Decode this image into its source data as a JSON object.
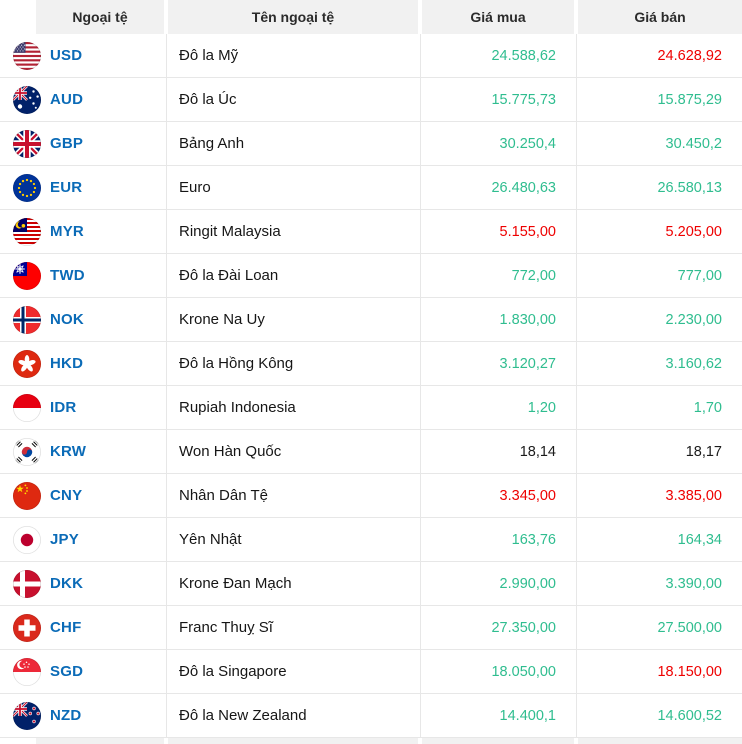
{
  "header": {
    "columns": [
      "Ngoại tệ",
      "Tên ngoại tệ",
      "Giá mua",
      "Giá bán"
    ]
  },
  "colors": {
    "up": "#2fbd8f",
    "down": "#ee0000",
    "neutral": "#1b1b1b",
    "code_blue": "#0b6bb7",
    "header_bg": "#f1f1f1"
  },
  "rows": [
    {
      "code": "USD",
      "flag_icon": "usd-flag-icon",
      "name": "Đô la Mỹ",
      "buy": "24.588,62",
      "buy_trend": "up",
      "sell": "24.628,92",
      "sell_trend": "down"
    },
    {
      "code": "AUD",
      "flag_icon": "aud-flag-icon",
      "name": "Đô la Úc",
      "buy": "15.775,73",
      "buy_trend": "up",
      "sell": "15.875,29",
      "sell_trend": "up"
    },
    {
      "code": "GBP",
      "flag_icon": "gbp-flag-icon",
      "name": "Bảng Anh",
      "buy": "30.250,4",
      "buy_trend": "up",
      "sell": "30.450,2",
      "sell_trend": "up"
    },
    {
      "code": "EUR",
      "flag_icon": "eur-flag-icon",
      "name": "Euro",
      "buy": "26.480,63",
      "buy_trend": "up",
      "sell": "26.580,13",
      "sell_trend": "up"
    },
    {
      "code": "MYR",
      "flag_icon": "myr-flag-icon",
      "name": "Ringit Malaysia",
      "buy": "5.155,00",
      "buy_trend": "down",
      "sell": "5.205,00",
      "sell_trend": "down"
    },
    {
      "code": "TWD",
      "flag_icon": "twd-flag-icon",
      "name": "Đô la Đài Loan",
      "buy": "772,00",
      "buy_trend": "up",
      "sell": "777,00",
      "sell_trend": "up"
    },
    {
      "code": "NOK",
      "flag_icon": "nok-flag-icon",
      "name": "Krone Na Uy",
      "buy": "1.830,00",
      "buy_trend": "up",
      "sell": "2.230,00",
      "sell_trend": "up"
    },
    {
      "code": "HKD",
      "flag_icon": "hkd-flag-icon",
      "name": "Đô la Hồng Kông",
      "buy": "3.120,27",
      "buy_trend": "up",
      "sell": "3.160,62",
      "sell_trend": "up"
    },
    {
      "code": "IDR",
      "flag_icon": "idr-flag-icon",
      "name": "Rupiah Indonesia",
      "buy": "1,20",
      "buy_trend": "up",
      "sell": "1,70",
      "sell_trend": "up"
    },
    {
      "code": "KRW",
      "flag_icon": "krw-flag-icon",
      "name": "Won Hàn Quốc",
      "buy": "18,14",
      "buy_trend": "neutral",
      "sell": "18,17",
      "sell_trend": "neutral"
    },
    {
      "code": "CNY",
      "flag_icon": "cny-flag-icon",
      "name": "Nhân Dân Tệ",
      "buy": "3.345,00",
      "buy_trend": "down",
      "sell": "3.385,00",
      "sell_trend": "down"
    },
    {
      "code": "JPY",
      "flag_icon": "jpy-flag-icon",
      "name": "Yên Nhật",
      "buy": "163,76",
      "buy_trend": "up",
      "sell": "164,34",
      "sell_trend": "up"
    },
    {
      "code": "DKK",
      "flag_icon": "dkk-flag-icon",
      "name": "Krone Đan Mạch",
      "buy": "2.990,00",
      "buy_trend": "up",
      "sell": "3.390,00",
      "sell_trend": "up"
    },
    {
      "code": "CHF",
      "flag_icon": "chf-flag-icon",
      "name": "Franc Thuỵ Sĩ",
      "buy": "27.350,00",
      "buy_trend": "up",
      "sell": "27.500,00",
      "sell_trend": "up"
    },
    {
      "code": "SGD",
      "flag_icon": "sgd-flag-icon",
      "name": "Đô la Singapore",
      "buy": "18.050,00",
      "buy_trend": "up",
      "sell": "18.150,00",
      "sell_trend": "down"
    },
    {
      "code": "NZD",
      "flag_icon": "nzd-flag-icon",
      "name": "Đô la New Zealand",
      "buy": "14.400,1",
      "buy_trend": "up",
      "sell": "14.600,52",
      "sell_trend": "up"
    }
  ]
}
